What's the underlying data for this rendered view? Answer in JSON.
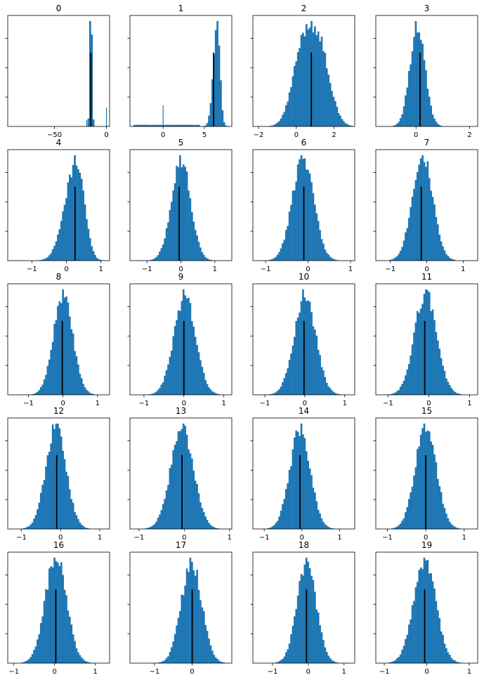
{
  "chart_data": [
    {
      "type": "histogram",
      "title": "0",
      "xticks": [
        -50,
        0
      ],
      "xlim": [
        -95,
        3
      ],
      "mean_line_x": -15,
      "shape": {
        "kind": "spike",
        "center": -15,
        "sd": 0.9,
        "extra_spikes": [
          {
            "x": 0,
            "height": 0.18
          },
          {
            "x": -19,
            "height": 0.06
          }
        ]
      },
      "bar_color": "#1f77b4",
      "mean_line_color": "#000000"
    },
    {
      "type": "histogram",
      "title": "1",
      "xticks": [
        0,
        5
      ],
      "xlim": [
        -4,
        8.3
      ],
      "mean_line_x": 6.1,
      "shape": {
        "kind": "skew",
        "center": 6.5,
        "sd_left": 0.45,
        "sd_right": 0.35,
        "baseline": 0.015,
        "extra_spikes": [
          {
            "x": 0,
            "height": 0.2
          }
        ]
      },
      "bar_color": "#1f77b4",
      "mean_line_color": "#000000"
    },
    {
      "type": "histogram",
      "title": "2",
      "xticks": [
        -2,
        0,
        2
      ],
      "xlim": [
        -2.3,
        3.1
      ],
      "mean_line_x": 0.8,
      "shape": {
        "kind": "bimodal",
        "modes": [
          {
            "center": 0.35,
            "sd": 0.55,
            "weight": 1
          },
          {
            "center": 1.25,
            "sd": 0.55,
            "weight": 0.95
          }
        ]
      },
      "bar_color": "#1f77b4",
      "mean_line_color": "#000000"
    },
    {
      "type": "histogram",
      "title": "3",
      "xticks": [
        0,
        2
      ],
      "xlim": [
        -1.5,
        2.3
      ],
      "mean_line_x": 0.15,
      "shape": {
        "kind": "gauss",
        "center": 0.05,
        "sd": 0.28
      },
      "bar_color": "#1f77b4",
      "mean_line_color": "#000000"
    },
    {
      "type": "histogram",
      "title": "4",
      "xticks": [
        -1,
        0,
        1
      ],
      "xlim": [
        -1.7,
        1.25
      ],
      "mean_line_x": 0.25,
      "shape": {
        "kind": "skew",
        "center": 0.3,
        "sd_left": 0.33,
        "sd_right": 0.22
      },
      "bar_color": "#1f77b4",
      "mean_line_color": "#000000"
    },
    {
      "type": "histogram",
      "title": "5",
      "xticks": [
        -1,
        0,
        1
      ],
      "xlim": [
        -1.5,
        1.5
      ],
      "mean_line_x": -0.05,
      "shape": {
        "kind": "gauss",
        "center": 0,
        "sd": 0.28
      },
      "bar_color": "#1f77b4",
      "mean_line_color": "#000000"
    },
    {
      "type": "histogram",
      "title": "6",
      "xticks": [
        -1,
        0,
        1
      ],
      "xlim": [
        -1.3,
        1.1
      ],
      "mean_line_x": -0.1,
      "shape": {
        "kind": "gauss",
        "center": -0.12,
        "sd": 0.25
      },
      "bar_color": "#1f77b4",
      "mean_line_color": "#000000"
    },
    {
      "type": "histogram",
      "title": "7",
      "xticks": [
        -1,
        0,
        1
      ],
      "xlim": [
        -1.4,
        1.4
      ],
      "mean_line_x": -0.15,
      "shape": {
        "kind": "gauss",
        "center": -0.12,
        "sd": 0.28
      },
      "bar_color": "#1f77b4",
      "mean_line_color": "#000000"
    },
    {
      "type": "histogram",
      "title": "8",
      "xticks": [
        -1,
        0,
        1
      ],
      "xlim": [
        -1.6,
        1.35
      ],
      "mean_line_x": -0.02,
      "shape": {
        "kind": "gauss",
        "center": 0,
        "sd": 0.28
      },
      "bar_color": "#1f77b4",
      "mean_line_color": "#000000"
    },
    {
      "type": "histogram",
      "title": "9",
      "xticks": [
        -1,
        0,
        1
      ],
      "xlim": [
        -1.35,
        1.2
      ],
      "mean_line_x": 0,
      "shape": {
        "kind": "gauss",
        "center": 0.02,
        "sd": 0.27
      },
      "bar_color": "#1f77b4",
      "mean_line_color": "#000000"
    },
    {
      "type": "histogram",
      "title": "10",
      "xticks": [
        -1,
        0,
        1
      ],
      "xlim": [
        -1.3,
        1.25
      ],
      "mean_line_x": -0.02,
      "shape": {
        "kind": "gauss",
        "center": 0,
        "sd": 0.27
      },
      "bar_color": "#1f77b4",
      "mean_line_color": "#000000"
    },
    {
      "type": "histogram",
      "title": "11",
      "xticks": [
        -1,
        0,
        1
      ],
      "xlim": [
        -1.3,
        1.2
      ],
      "mean_line_x": -0.1,
      "shape": {
        "kind": "gauss",
        "center": -0.08,
        "sd": 0.27
      },
      "bar_color": "#1f77b4",
      "mean_line_color": "#000000"
    },
    {
      "type": "histogram",
      "title": "12",
      "xticks": [
        -1,
        0,
        1
      ],
      "xlim": [
        -1.35,
        1.25
      ],
      "mean_line_x": -0.1,
      "shape": {
        "kind": "gauss",
        "center": -0.12,
        "sd": 0.26
      },
      "bar_color": "#1f77b4",
      "mean_line_color": "#000000"
    },
    {
      "type": "histogram",
      "title": "13",
      "xticks": [
        -1,
        0,
        1
      ],
      "xlim": [
        -1.2,
        1.05
      ],
      "mean_line_x": -0.05,
      "shape": {
        "kind": "gauss",
        "center": -0.05,
        "sd": 0.25
      },
      "bar_color": "#1f77b4",
      "mean_line_color": "#000000"
    },
    {
      "type": "histogram",
      "title": "14",
      "xticks": [
        -1,
        0,
        1
      ],
      "xlim": [
        -1.3,
        1.4
      ],
      "mean_line_x": -0.05,
      "shape": {
        "kind": "gauss",
        "center": -0.05,
        "sd": 0.27
      },
      "bar_color": "#1f77b4",
      "mean_line_color": "#000000"
    },
    {
      "type": "histogram",
      "title": "15",
      "xticks": [
        -1,
        0,
        1
      ],
      "xlim": [
        -1.3,
        1.35
      ],
      "mean_line_x": 0,
      "shape": {
        "kind": "gauss",
        "center": 0,
        "sd": 0.27
      },
      "bar_color": "#1f77b4",
      "mean_line_color": "#000000"
    },
    {
      "type": "histogram",
      "title": "16",
      "xticks": [
        -1,
        0,
        1
      ],
      "xlim": [
        -1.15,
        1.35
      ],
      "mean_line_x": 0.03,
      "shape": {
        "kind": "gauss",
        "center": 0.03,
        "sd": 0.26
      },
      "bar_color": "#1f77b4",
      "mean_line_color": "#000000"
    },
    {
      "type": "histogram",
      "title": "17",
      "xticks": [
        -1,
        0
      ],
      "xlim": [
        -1.65,
        1.05
      ],
      "mean_line_x": 0,
      "shape": {
        "kind": "gauss",
        "center": -0.02,
        "sd": 0.27
      },
      "bar_color": "#1f77b4",
      "mean_line_color": "#000000"
    },
    {
      "type": "histogram",
      "title": "18",
      "xticks": [
        -1,
        0,
        1
      ],
      "xlim": [
        -1.55,
        1.3
      ],
      "mean_line_x": -0.05,
      "shape": {
        "kind": "gauss",
        "center": -0.05,
        "sd": 0.27
      },
      "bar_color": "#1f77b4",
      "mean_line_color": "#000000"
    },
    {
      "type": "histogram",
      "title": "19",
      "xticks": [
        -1,
        0,
        1
      ],
      "xlim": [
        -1.2,
        1.2
      ],
      "mean_line_x": -0.05,
      "shape": {
        "kind": "gauss",
        "center": -0.05,
        "sd": 0.26
      },
      "bar_color": "#1f77b4",
      "mean_line_color": "#000000"
    }
  ]
}
